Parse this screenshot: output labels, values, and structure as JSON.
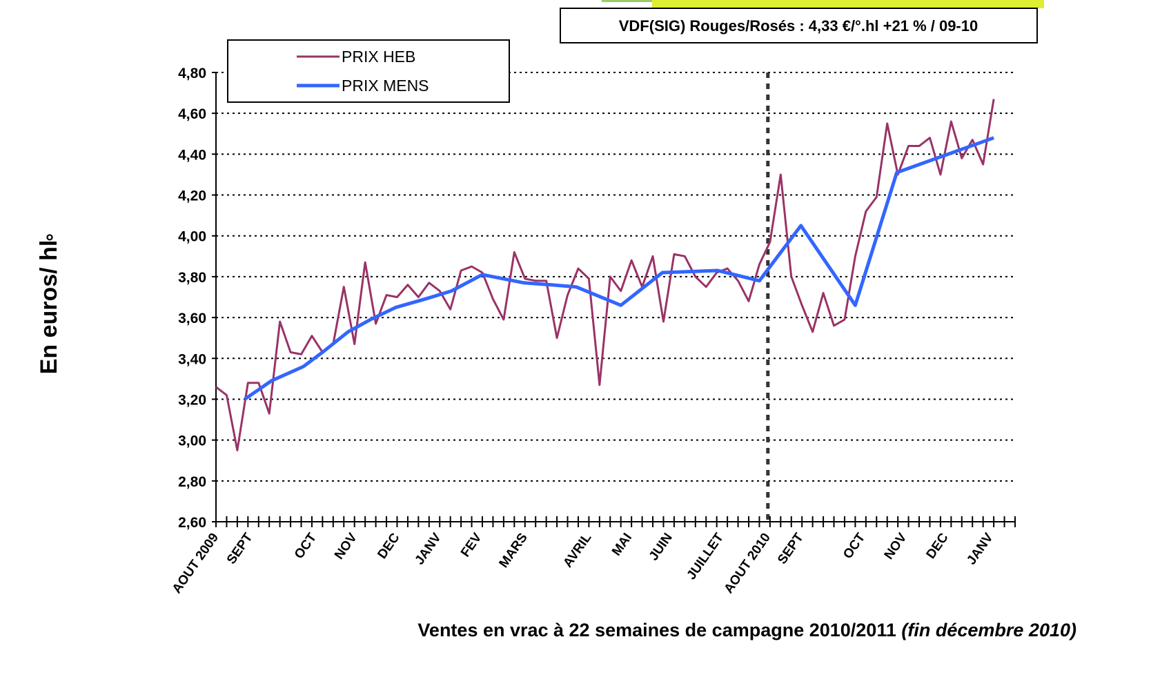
{
  "chart_data": {
    "type": "line",
    "title": "VDF(SIG) Rouges/Rosés : 4,33 €/°.hl +21 % / 09-10",
    "y_label": "En euros/ hl",
    "y_label_mark": "°",
    "x_label": "Ventes en vrac à 22 semaines de campagne 2010/2011",
    "x_label_note": "(fin décembre 2010)",
    "xlim": [
      0,
      75
    ],
    "xticks": [
      {
        "value": 0,
        "label": "AOUT 2009"
      },
      {
        "value": 3.2,
        "label": "SEPT"
      },
      {
        "value": 9.2,
        "label": "OCT"
      },
      {
        "value": 13,
        "label": "NOV"
      },
      {
        "value": 17,
        "label": "DEC"
      },
      {
        "value": 20.9,
        "label": "JANV"
      },
      {
        "value": 24.7,
        "label": "FEV"
      },
      {
        "value": 29,
        "label": "MARS"
      },
      {
        "value": 35,
        "label": "AVRIL"
      },
      {
        "value": 38.8,
        "label": "MAI"
      },
      {
        "value": 42.6,
        "label": "JUIN"
      },
      {
        "value": 47.4,
        "label": "JUILLET"
      },
      {
        "value": 51.8,
        "label": "AOUT 2010"
      },
      {
        "value": 54.9,
        "label": "SEPT"
      },
      {
        "value": 60.7,
        "label": "OCT"
      },
      {
        "value": 64.6,
        "label": "NOV"
      },
      {
        "value": 68.5,
        "label": "DEC"
      },
      {
        "value": 72.7,
        "label": "JANV"
      }
    ],
    "vline_x": 51.8,
    "ylim": [
      2.6,
      4.8
    ],
    "yticks": [
      {
        "value": 2.6,
        "label": "2,60"
      },
      {
        "value": 2.8,
        "label": "2,80"
      },
      {
        "value": 3.0,
        "label": "3,00"
      },
      {
        "value": 3.2,
        "label": "3,20"
      },
      {
        "value": 3.4,
        "label": "3,40"
      },
      {
        "value": 3.6,
        "label": "3,60"
      },
      {
        "value": 3.8,
        "label": "3,80"
      },
      {
        "value": 4.0,
        "label": "4,00"
      },
      {
        "value": 4.2,
        "label": "4,20"
      },
      {
        "value": 4.4,
        "label": "4,40"
      },
      {
        "value": 4.6,
        "label": "4,60"
      },
      {
        "value": 4.8,
        "label": "4,80"
      }
    ],
    "grid": true,
    "legend": "top-left",
    "series": [
      {
        "name": "PRIX HEB",
        "color": "#993366",
        "width": 3,
        "x": [
          0,
          1,
          2,
          3,
          4,
          5,
          6,
          7,
          8,
          9,
          10,
          11,
          12,
          13,
          14,
          15,
          16,
          17,
          18,
          19,
          20,
          21,
          22,
          23,
          24,
          25,
          26,
          27,
          28,
          29,
          30,
          31,
          32,
          33,
          34,
          35,
          36,
          37,
          38,
          39,
          40,
          41,
          42,
          43,
          44,
          45,
          46,
          47,
          48,
          49,
          50,
          51,
          52,
          53,
          54,
          55,
          56,
          57,
          58,
          59,
          60,
          61,
          62,
          63,
          64,
          65,
          66,
          67,
          68,
          69,
          70,
          71,
          72,
          73
        ],
        "values": [
          3.26,
          3.22,
          2.95,
          3.28,
          3.28,
          3.13,
          3.58,
          3.43,
          3.42,
          3.51,
          3.43,
          3.47,
          3.75,
          3.47,
          3.87,
          3.57,
          3.71,
          3.7,
          3.76,
          3.7,
          3.77,
          3.73,
          3.64,
          3.83,
          3.85,
          3.82,
          3.69,
          3.59,
          3.92,
          3.79,
          3.78,
          3.78,
          3.5,
          3.71,
          3.84,
          3.79,
          3.27,
          3.8,
          3.73,
          3.88,
          3.75,
          3.9,
          3.58,
          3.91,
          3.9,
          3.8,
          3.75,
          3.82,
          3.84,
          3.78,
          3.68,
          3.86,
          3.97,
          4.3,
          3.8,
          3.66,
          3.53,
          3.72,
          3.56,
          3.59,
          3.9,
          4.12,
          4.19,
          4.55,
          4.3,
          4.44,
          4.44,
          4.48,
          4.3,
          4.56,
          4.38,
          4.47,
          4.35,
          4.67
        ]
      },
      {
        "name": "PRIX MENS",
        "color": "#3366ff",
        "width": 5,
        "x": [
          2.7,
          5.2,
          8.2,
          10,
          12.4,
          14.5,
          16.9,
          19.6,
          22.1,
          25,
          28.9,
          31.5,
          33.8,
          38,
          41.9,
          47.1,
          51,
          54.9,
          60,
          63.9,
          73
        ],
        "values": [
          3.2,
          3.29,
          3.36,
          3.43,
          3.53,
          3.59,
          3.65,
          3.69,
          3.73,
          3.81,
          3.77,
          3.76,
          3.75,
          3.66,
          3.82,
          3.83,
          3.78,
          4.05,
          3.66,
          4.31,
          4.48
        ]
      }
    ]
  }
}
